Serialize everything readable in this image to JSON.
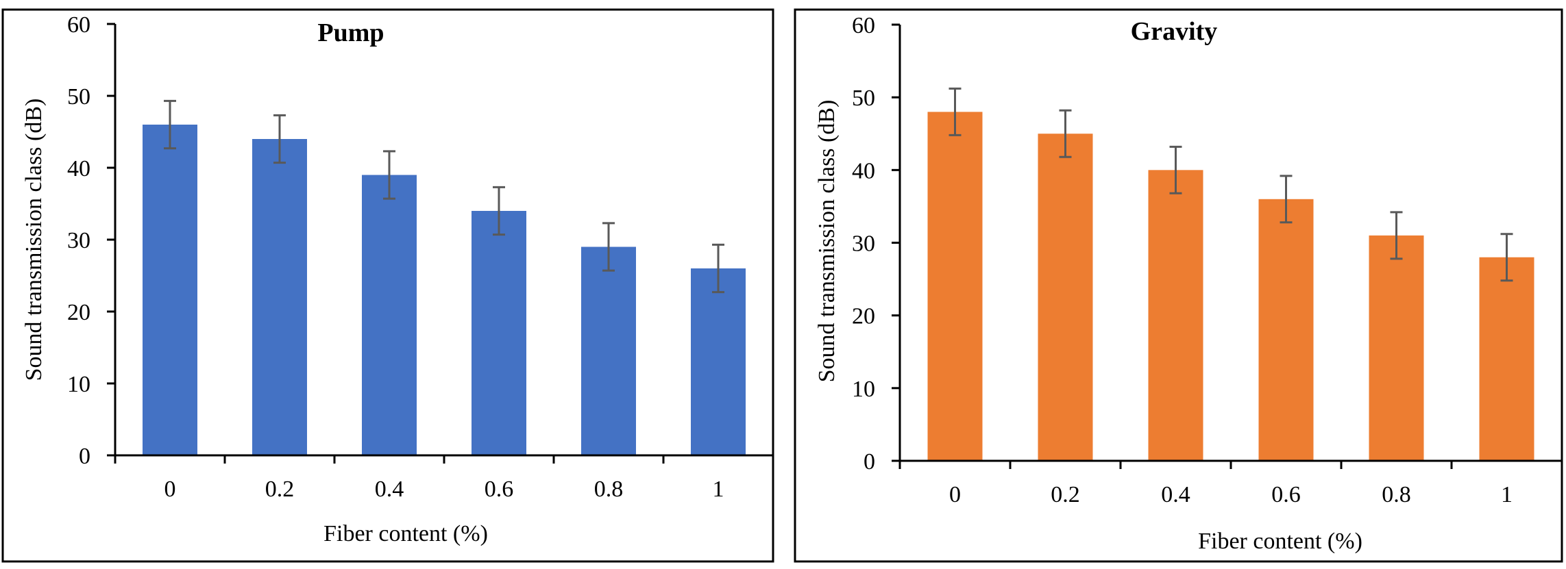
{
  "chart_data": [
    {
      "type": "bar",
      "title": "Pump",
      "xlabel": "Fiber content (%)",
      "ylabel": "Sound transmission class (dB)",
      "categories": [
        "0",
        "0.2",
        "0.4",
        "0.6",
        "0.8",
        "1"
      ],
      "values": [
        46,
        44,
        39,
        34,
        29,
        26
      ],
      "error": [
        3.3,
        3.3,
        3.3,
        3.3,
        3.3,
        3.3
      ],
      "ylim": [
        0,
        60
      ],
      "yticks": [
        "0",
        "10",
        "20",
        "30",
        "40",
        "50",
        "60"
      ],
      "color": "#4472C4",
      "grid": false
    },
    {
      "type": "bar",
      "title": "Gravity",
      "xlabel": "Fiber content (%)",
      "ylabel": "Sound transmission class (dB)",
      "categories": [
        "0",
        "0.2",
        "0.4",
        "0.6",
        "0.8",
        "1"
      ],
      "values": [
        48,
        45,
        40,
        36,
        31,
        28
      ],
      "error": [
        3.2,
        3.2,
        3.2,
        3.2,
        3.2,
        3.2
      ],
      "ylim": [
        0,
        60
      ],
      "yticks": [
        "0",
        "10",
        "20",
        "30",
        "40",
        "50",
        "60"
      ],
      "color": "#ED7D31",
      "grid": false
    }
  ]
}
